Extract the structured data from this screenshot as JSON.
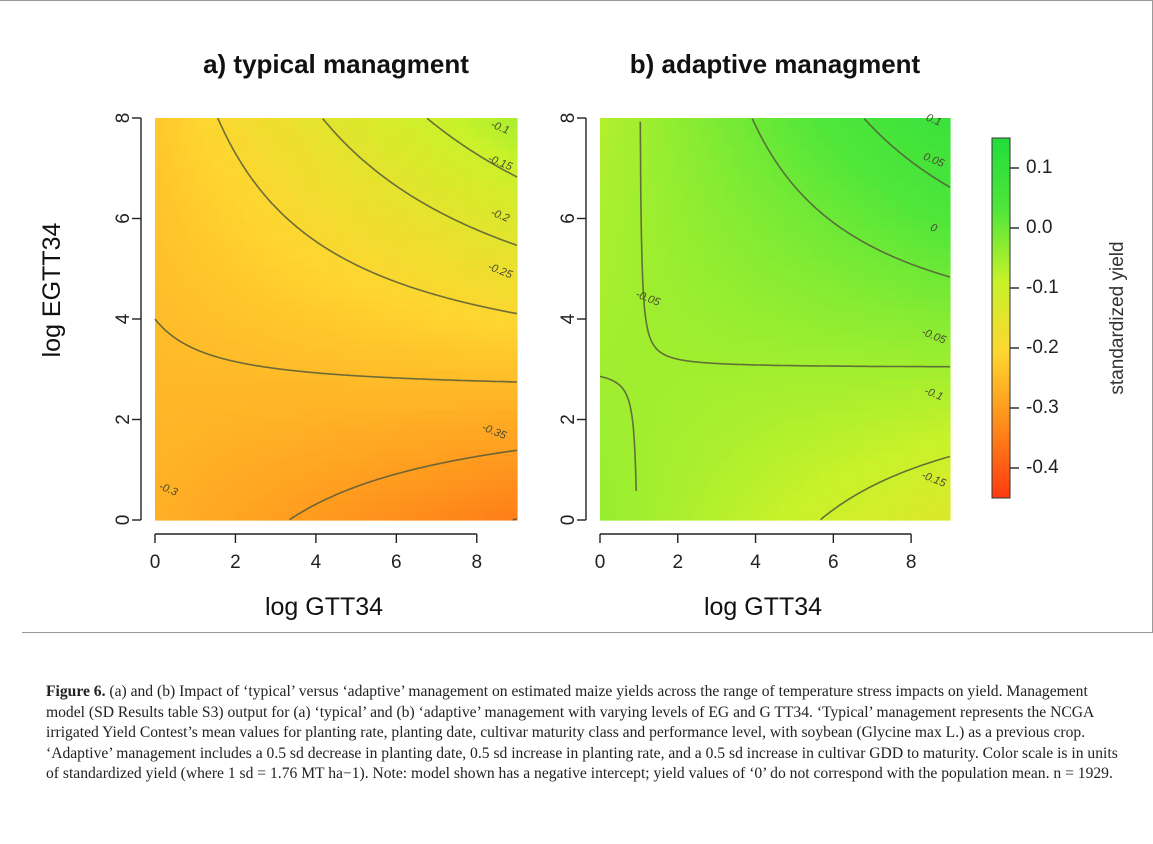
{
  "chart_data": [
    {
      "type": "heatmap",
      "panel": "a",
      "title": "a) typical managment",
      "xlabel": "log GTT34",
      "ylabel": "log EGTT34",
      "xlim": [
        0,
        9
      ],
      "ylim": [
        0,
        8
      ],
      "x_ticks": [
        "0",
        "2",
        "4",
        "6",
        "8"
      ],
      "y_ticks": [
        "0",
        "2",
        "4",
        "6",
        "8"
      ],
      "field": {
        "intercept": -0.27,
        "x": -0.009,
        "y": 0.005,
        "xy": 0.00353
      },
      "contours": [
        {
          "label": "-0.3",
          "level": -0.3
        },
        {
          "label": "-0.25",
          "level": -0.25
        },
        {
          "label": "-0.2",
          "level": -0.2
        },
        {
          "label": "-0.15",
          "level": -0.15
        },
        {
          "label": "-0.1",
          "level": -0.1
        },
        {
          "label": "-0.35",
          "level": -0.35
        }
      ]
    },
    {
      "type": "heatmap",
      "panel": "b",
      "title": "b) adaptive managment",
      "xlabel": "log GTT34",
      "ylabel": "",
      "xlim": [
        0,
        9
      ],
      "ylim": [
        0,
        8
      ],
      "x_ticks": [
        "0",
        "2",
        "4",
        "6",
        "8"
      ],
      "y_ticks": [
        "0",
        "2",
        "4",
        "6",
        "8"
      ],
      "field": {
        "intercept": -0.04,
        "x": -0.0106,
        "y": -0.0035,
        "xy": 0.0035
      },
      "contours": [
        {
          "label": "0.1",
          "level": 0.1
        },
        {
          "label": "0.05",
          "level": 0.05
        },
        {
          "label": "0",
          "level": 0
        },
        {
          "label": "-0.05",
          "level": -0.05
        },
        {
          "label": "-0.05",
          "level": -0.05
        },
        {
          "label": "-0.1",
          "level": -0.1
        },
        {
          "label": "-0.15",
          "level": -0.15
        }
      ]
    }
  ],
  "colorbar": {
    "label": "standardized yield",
    "range": [
      -0.45,
      0.15
    ],
    "ticks": [
      "0.1",
      "0.0",
      "-0.1",
      "-0.2",
      "-0.3",
      "-0.4"
    ],
    "tick_values": [
      0.1,
      0.0,
      -0.1,
      -0.2,
      -0.3,
      -0.4
    ],
    "colors": [
      "#ff3a10",
      "#ff8a1a",
      "#ffd530",
      "#c8f22a",
      "#4fe63a",
      "#22dd3c"
    ]
  },
  "caption": {
    "figure_label": "Figure 6.",
    "text": " (a) and (b) Impact of ‘typical’ versus ‘adaptive’ management on estimated maize yields across the range of temperature stress impacts on yield. Management model (SD Results table S3) output for (a) ‘typical’ and (b) ‘adaptive’ management with varying levels of EG and G TT34. ‘Typical’ management represents the NCGA irrigated Yield Contest’s mean values for planting rate, planting date, cultivar maturity class and performance level, with soybean (Glycine max L.) as a previous crop. ‘Adaptive’ management includes a 0.5 sd decrease in planting date, 0.5 sd increase in planting rate, and a 0.5 sd increase in cultivar GDD to maturity. Color scale is in units of standardized yield (where 1 sd = 1.76 MT ha−1). Note: model shown has a negative intercept; yield values of ‘0’ do not correspond with the population mean. n = 1929."
  }
}
